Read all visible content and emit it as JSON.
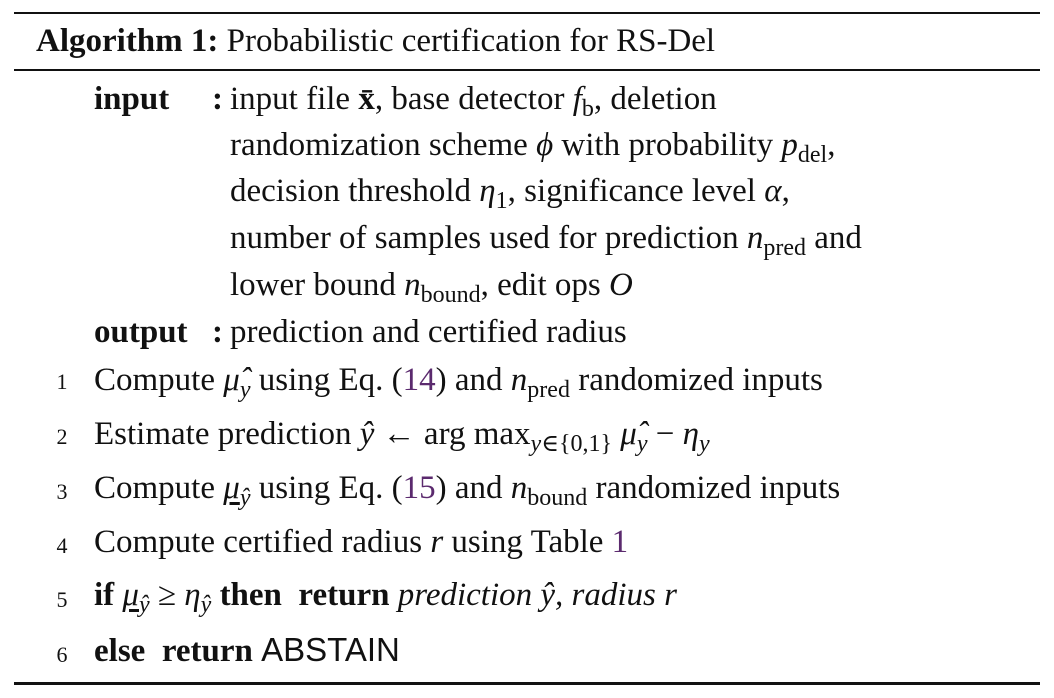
{
  "algorithm": {
    "label": "Algorithm 1:",
    "title": "Probabilistic certification for RS-Del",
    "input_label": "input",
    "output_label": "output",
    "output_text": "prediction and certified radius",
    "ref_eq14": "14",
    "ref_eq15": "15",
    "ref_table": "1",
    "abstain": "ABSTAIN",
    "line_numbers": [
      "1",
      "2",
      "3",
      "4",
      "5",
      "6"
    ]
  }
}
